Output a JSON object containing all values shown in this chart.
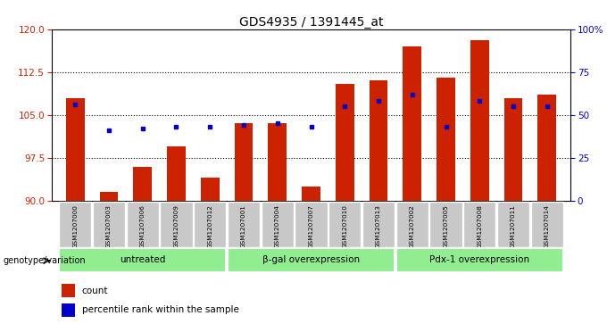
{
  "title": "GDS4935 / 1391445_at",
  "samples": [
    "GSM1207000",
    "GSM1207003",
    "GSM1207006",
    "GSM1207009",
    "GSM1207012",
    "GSM1207001",
    "GSM1207004",
    "GSM1207007",
    "GSM1207010",
    "GSM1207013",
    "GSM1207002",
    "GSM1207005",
    "GSM1207008",
    "GSM1207011",
    "GSM1207014"
  ],
  "counts": [
    108.0,
    91.5,
    96.0,
    99.5,
    94.0,
    103.5,
    103.5,
    92.5,
    110.5,
    111.0,
    117.0,
    111.5,
    118.0,
    108.0,
    108.5
  ],
  "percentiles": [
    56,
    41,
    42,
    43,
    43,
    44,
    45,
    43,
    55,
    58,
    62,
    43,
    58,
    55,
    55
  ],
  "ylim_left": [
    90,
    120
  ],
  "ylim_right": [
    0,
    100
  ],
  "yticks_left": [
    90,
    97.5,
    105,
    112.5,
    120
  ],
  "yticks_right": [
    0,
    25,
    50,
    75,
    100
  ],
  "bar_color": "#cc2200",
  "dot_color": "#0000cc",
  "bar_bottom": 90,
  "group_row_color": "#90EE90",
  "sample_bg_color": "#c8c8c8",
  "label_genotype": "genotype/variation",
  "legend_count": "count",
  "legend_percentile": "percentile rank within the sample",
  "group_boundaries": [
    [
      0,
      4,
      "untreated"
    ],
    [
      5,
      9,
      "β-gal overexpression"
    ],
    [
      10,
      14,
      "Pdx-1 overexpression"
    ]
  ]
}
